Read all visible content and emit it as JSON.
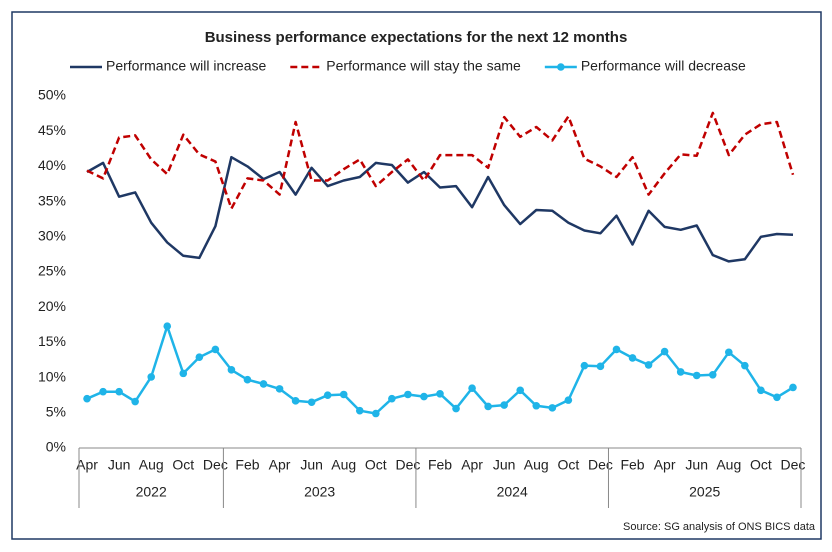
{
  "chart_data": {
    "type": "line",
    "title": "Business performance expectations for the next 12 months",
    "categories": [
      "Apr",
      null,
      "Jun",
      null,
      "Aug",
      null,
      "Oct",
      null,
      "Dec",
      null,
      "Feb",
      null,
      "Apr",
      null,
      "Jun",
      null,
      "Aug",
      null,
      "Oct",
      null,
      "Dec",
      null,
      "Feb",
      null,
      "Apr",
      null,
      "Jun",
      null,
      "Aug",
      null,
      "Oct",
      null,
      "Dec",
      null,
      "Feb",
      null,
      "Apr",
      null,
      "Jun",
      null,
      "Aug",
      null,
      "Oct",
      null,
      "Dec"
    ],
    "year_labels": [
      "2022",
      "2023",
      "2024",
      "2025"
    ],
    "series": [
      {
        "name": "Performance will increase",
        "color": "#1f3864",
        "dashed": false,
        "markers": false,
        "values": [
          39.2,
          40.5,
          35.7,
          36.3,
          32.0,
          29.2,
          27.3,
          27.0,
          31.5,
          41.3,
          40.0,
          38.2,
          39.2,
          36.0,
          39.8,
          37.2,
          38.0,
          38.5,
          40.5,
          40.2,
          37.7,
          39.2,
          37.0,
          37.2,
          34.2,
          38.5,
          34.5,
          31.8,
          33.8,
          33.7,
          32.0,
          30.9,
          30.5,
          33.0,
          28.9,
          33.7,
          31.4,
          31.0,
          31.6,
          27.4,
          26.5,
          26.8,
          30.0,
          30.4,
          30.3
        ]
      },
      {
        "name": "Performance will stay the same",
        "color": "#c00000",
        "dashed": true,
        "markers": false,
        "values": [
          39.4,
          38.3,
          44.1,
          44.4,
          41.0,
          38.9,
          44.5,
          41.7,
          40.7,
          34.0,
          38.3,
          38.0,
          36.0,
          46.3,
          38.0,
          38.0,
          39.6,
          41.0,
          37.2,
          39.2,
          41.0,
          38.0,
          41.6,
          41.6,
          41.6,
          39.8,
          47.0,
          44.2,
          45.6,
          43.7,
          47.1,
          41.1,
          40.0,
          38.5,
          41.3,
          36.0,
          39.0,
          41.7,
          41.5,
          47.6,
          41.6,
          44.5,
          46.0,
          46.3,
          38.8
        ]
      },
      {
        "name": "Performance will decrease",
        "color": "#1fb4e8",
        "dashed": false,
        "markers": true,
        "values": [
          7.0,
          8.0,
          8.0,
          6.6,
          10.1,
          17.3,
          10.6,
          12.9,
          14.0,
          11.1,
          9.7,
          9.1,
          8.4,
          6.7,
          6.5,
          7.5,
          7.6,
          5.3,
          4.9,
          7.0,
          7.6,
          7.3,
          7.7,
          5.6,
          8.5,
          5.9,
          6.1,
          8.2,
          6.0,
          5.7,
          6.8,
          11.7,
          11.6,
          14.0,
          12.8,
          11.8,
          13.7,
          10.8,
          10.3,
          10.4,
          13.6,
          11.7,
          8.2,
          7.2,
          8.6
        ]
      }
    ],
    "ylim": [
      0,
      50
    ],
    "yticks": [
      {
        "value": 0,
        "label": "0%"
      },
      {
        "value": 5,
        "label": "5%"
      },
      {
        "value": 10,
        "label": "10%"
      },
      {
        "value": 15,
        "label": "15%"
      },
      {
        "value": 20,
        "label": "20%"
      },
      {
        "value": 25,
        "label": "25%"
      },
      {
        "value": 30,
        "label": "30%"
      },
      {
        "value": 35,
        "label": "35%"
      },
      {
        "value": 40,
        "label": "40%"
      },
      {
        "value": 45,
        "label": "45%"
      },
      {
        "value": 50,
        "label": "50%"
      }
    ],
    "grid": false,
    "legend": "top",
    "source": "Source: SG analysis of ONS BICS data"
  }
}
